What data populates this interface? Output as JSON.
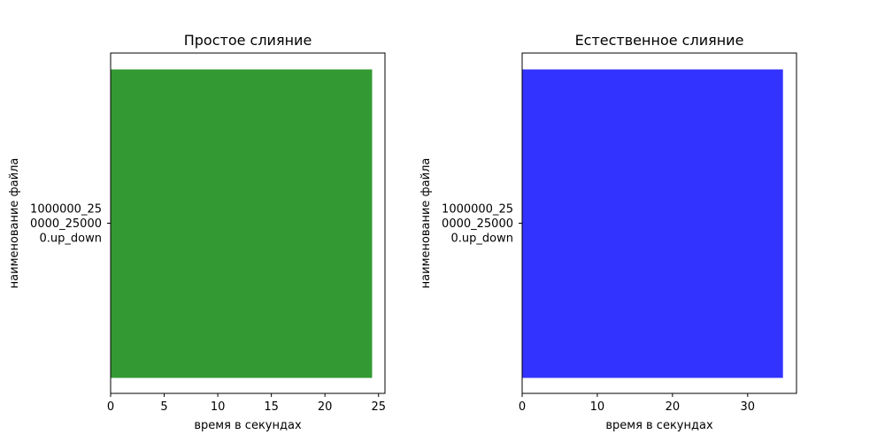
{
  "chart_data": [
    {
      "type": "bar",
      "orientation": "horizontal",
      "title": "Простое слияние",
      "xlabel": "время в секундах",
      "ylabel": "наименование файла",
      "categories": [
        [
          "1000000_25",
          "0000_25000",
          "0.up_down"
        ]
      ],
      "values": [
        24.4
      ],
      "xlim": [
        0,
        25.6
      ],
      "xticks": [
        0,
        5,
        10,
        15,
        20,
        25
      ],
      "bar_color": "#339933",
      "grid": false
    },
    {
      "type": "bar",
      "orientation": "horizontal",
      "title": "Естественное слияние",
      "xlabel": "время в секундах",
      "ylabel": "наименование файла",
      "categories": [
        [
          "1000000_25",
          "0000_25000",
          "0.up_down"
        ]
      ],
      "values": [
        34.7
      ],
      "xlim": [
        0,
        36.5
      ],
      "xticks": [
        0,
        10,
        20,
        30
      ],
      "bar_color": "#3333ff",
      "grid": false
    }
  ]
}
